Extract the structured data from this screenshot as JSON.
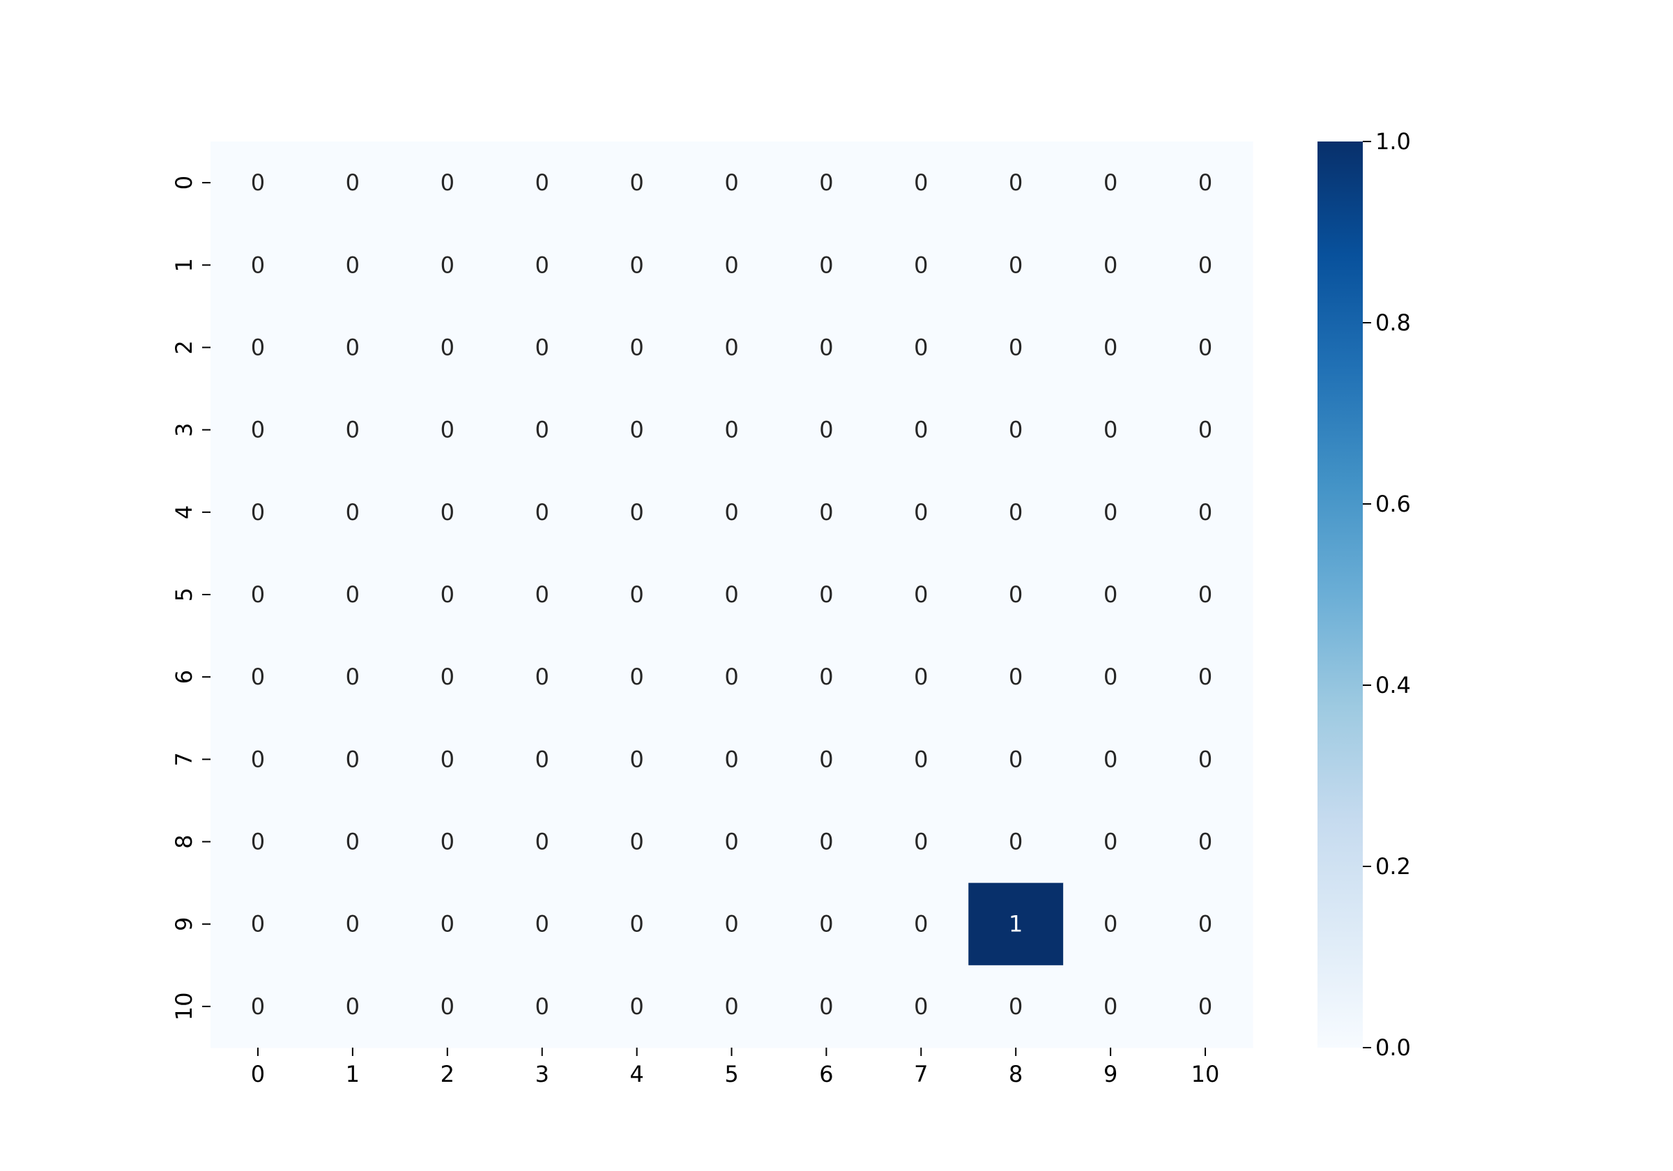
{
  "chart_data": {
    "type": "heatmap",
    "x_categories": [
      "0",
      "1",
      "2",
      "3",
      "4",
      "5",
      "6",
      "7",
      "8",
      "9",
      "10"
    ],
    "y_categories": [
      "0",
      "1",
      "2",
      "3",
      "4",
      "5",
      "6",
      "7",
      "8",
      "9",
      "10"
    ],
    "values": [
      [
        0,
        0,
        0,
        0,
        0,
        0,
        0,
        0,
        0,
        0,
        0
      ],
      [
        0,
        0,
        0,
        0,
        0,
        0,
        0,
        0,
        0,
        0,
        0
      ],
      [
        0,
        0,
        0,
        0,
        0,
        0,
        0,
        0,
        0,
        0,
        0
      ],
      [
        0,
        0,
        0,
        0,
        0,
        0,
        0,
        0,
        0,
        0,
        0
      ],
      [
        0,
        0,
        0,
        0,
        0,
        0,
        0,
        0,
        0,
        0,
        0
      ],
      [
        0,
        0,
        0,
        0,
        0,
        0,
        0,
        0,
        0,
        0,
        0
      ],
      [
        0,
        0,
        0,
        0,
        0,
        0,
        0,
        0,
        0,
        0,
        0
      ],
      [
        0,
        0,
        0,
        0,
        0,
        0,
        0,
        0,
        0,
        0,
        0
      ],
      [
        0,
        0,
        0,
        0,
        0,
        0,
        0,
        0,
        0,
        0,
        0
      ],
      [
        0,
        0,
        0,
        0,
        0,
        0,
        0,
        0,
        1,
        0,
        0
      ],
      [
        0,
        0,
        0,
        0,
        0,
        0,
        0,
        0,
        0,
        0,
        0
      ]
    ],
    "annotations": true,
    "colormap": "Blues",
    "color_low": "#f7fbff",
    "color_high": "#08306b",
    "annotation_color_dark": "#262626",
    "annotation_color_light": "#ffffff",
    "colorbar": {
      "range": [
        0.0,
        1.0
      ],
      "ticks": [
        0.0,
        0.2,
        0.4,
        0.6,
        0.8,
        1.0
      ],
      "tick_labels": [
        "0.0",
        "0.2",
        "0.4",
        "0.6",
        "0.8",
        "1.0"
      ],
      "placement": "right"
    },
    "title": "",
    "xlabel": "",
    "ylabel": ""
  }
}
